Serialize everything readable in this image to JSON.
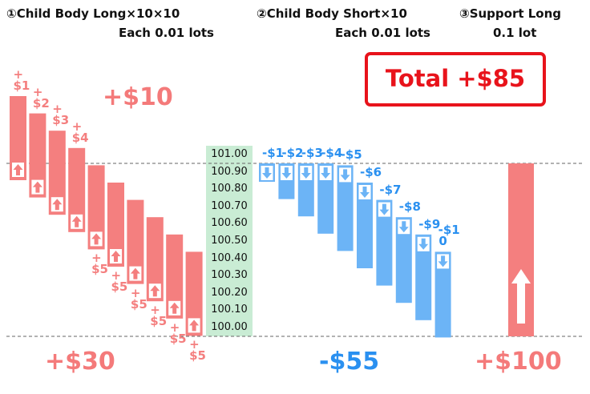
{
  "headers": [
    {
      "title": "①Child Body Long×10×10",
      "subtitle": "Each 0.01 lots"
    },
    {
      "title": "②Child Body Short×10",
      "subtitle": "Each 0.01 lots"
    },
    {
      "title": "③Support Long",
      "subtitle": "0.1 lot"
    }
  ],
  "total": "Total +$85",
  "results": {
    "long_top": "+$10",
    "long": "+$30",
    "short": "-$55",
    "support": "+$100"
  },
  "price_levels": [
    "101.00",
    "100.90",
    "100.80",
    "100.70",
    "100.60",
    "100.50",
    "100.40",
    "100.30",
    "100.20",
    "100.10",
    "100.00"
  ],
  "long_labels": [
    "+$1",
    "+$2",
    "+$3",
    "+$4",
    "+$5",
    "+$5",
    "+$5",
    "+$5",
    "+$5",
    "+$5"
  ],
  "short_labels": [
    "-$1",
    "-$2",
    "-$3",
    "-$4",
    "-$5",
    "-$6",
    "-$7",
    "-$8",
    "-$9",
    "-$10"
  ]
}
